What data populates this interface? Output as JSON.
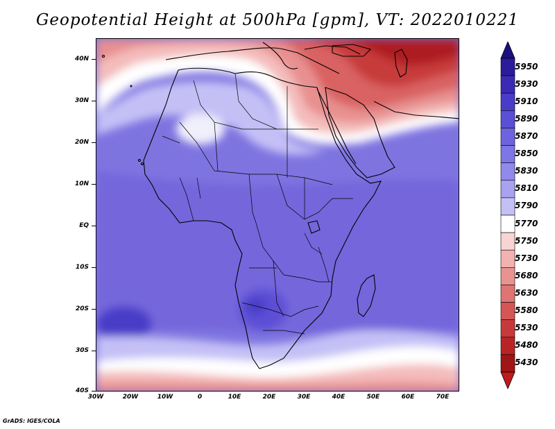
{
  "title": "Geopotential Height at 500hPa [gpm], VT: 2022010221",
  "credit": "GrADS: IGES/COLA",
  "lat_labels": [
    "40N",
    "30N",
    "20N",
    "10N",
    "EQ",
    "10S",
    "20S",
    "30S",
    "40S"
  ],
  "lon_labels": [
    "30W",
    "20W",
    "10W",
    "0",
    "10E",
    "20E",
    "30E",
    "40E",
    "50E",
    "60E",
    "70E"
  ],
  "colorbar": {
    "levels": [
      "5950",
      "5930",
      "5910",
      "5890",
      "5870",
      "5850",
      "5830",
      "5810",
      "5790",
      "5770",
      "5750",
      "5730",
      "5680",
      "5630",
      "5580",
      "5530",
      "5480",
      "5430"
    ],
    "colors": [
      "#2a1c9a",
      "#3a2ab5",
      "#4a3cc8",
      "#5b4fd6",
      "#6d63df",
      "#7e76e6",
      "#9189ec",
      "#a8a2f0",
      "#c4c0f6",
      "#ffffff",
      "#f9d4d4",
      "#f2b2b0",
      "#e99391",
      "#df7473",
      "#d45656",
      "#c73a3b",
      "#b82425",
      "#a01515"
    ],
    "top_arrow_color": "#1c1080",
    "bottom_arrow_color": "#c01a1a"
  }
}
